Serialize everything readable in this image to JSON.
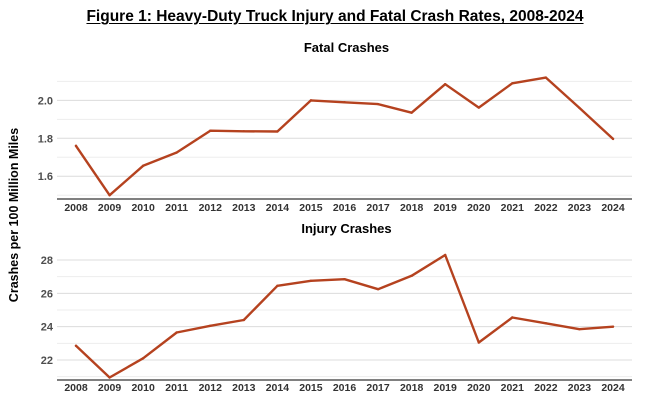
{
  "title": "Figure 1: Heavy-Duty Truck Injury and Fatal Crash Rates, 2008-2024",
  "ylabel": "Crashes per 100 Million Miles",
  "line_color": "#b5421f",
  "chart_data": [
    {
      "type": "line",
      "title": "Fatal Crashes",
      "xlabel": "",
      "ylabel": "Crashes per 100 Million Miles",
      "x": [
        2008,
        2009,
        2010,
        2011,
        2012,
        2013,
        2014,
        2015,
        2016,
        2017,
        2018,
        2019,
        2020,
        2021,
        2022,
        2023,
        2024
      ],
      "series": [
        {
          "values": [
            1.76,
            1.5,
            1.655,
            1.725,
            1.84,
            1.837,
            1.836,
            2.0,
            1.99,
            1.98,
            1.935,
            2.085,
            1.962,
            2.09,
            2.12,
            1.96,
            1.797
          ]
        }
      ],
      "ylim": [
        1.48,
        2.16
      ],
      "yticks": [
        1.6,
        1.8,
        2.0
      ],
      "ytick_labels": [
        "1.6",
        "1.8",
        "2.0"
      ],
      "grid": true
    },
    {
      "type": "line",
      "title": "Injury Crashes",
      "xlabel": "",
      "ylabel": "Crashes per 100 Million Miles",
      "x": [
        2008,
        2009,
        2010,
        2011,
        2012,
        2013,
        2014,
        2015,
        2016,
        2017,
        2018,
        2019,
        2020,
        2021,
        2022,
        2023,
        2024
      ],
      "series": [
        {
          "values": [
            22.85,
            20.95,
            22.1,
            23.65,
            24.05,
            24.4,
            26.45,
            26.75,
            26.85,
            26.25,
            27.05,
            28.3,
            23.05,
            24.55,
            24.2,
            23.85,
            24.0
          ]
        }
      ],
      "ylim": [
        20.8,
        28.9
      ],
      "yticks": [
        22,
        24,
        26,
        28
      ],
      "ytick_labels": [
        "22",
        "24",
        "26",
        "28"
      ],
      "grid": true
    }
  ]
}
